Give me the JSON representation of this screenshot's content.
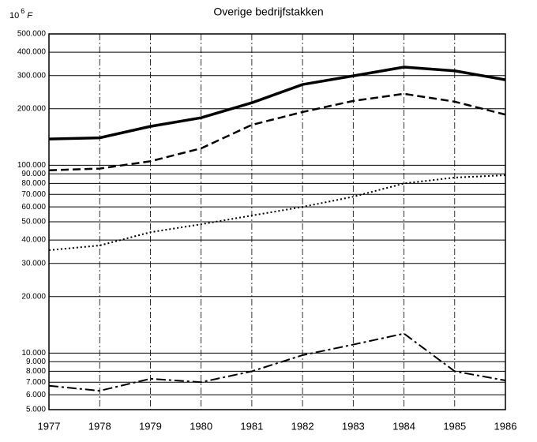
{
  "chart_data": {
    "type": "line",
    "title": "Overige bedrijfstakken",
    "y_label": {
      "base": "10",
      "exponent": "6",
      "unit": "F"
    },
    "x": [
      1977,
      1978,
      1979,
      1980,
      1981,
      1982,
      1983,
      1984,
      1985,
      1986
    ],
    "xlim": [
      1977,
      1986
    ],
    "xticks": [
      1977,
      1978,
      1979,
      1980,
      1981,
      1982,
      1983,
      1984,
      1985,
      1986
    ],
    "ylim": [
      5000,
      500000
    ],
    "log_y": true,
    "grid": true,
    "yticks": [
      {
        "value": 5000,
        "label": "5.000"
      },
      {
        "value": 6000,
        "label": "6.000"
      },
      {
        "value": 7000,
        "label": "7.000"
      },
      {
        "value": 8000,
        "label": "8.000"
      },
      {
        "value": 9000,
        "label": "9.000"
      },
      {
        "value": 10000,
        "label": "10.000"
      },
      {
        "value": 20000,
        "label": "20.000"
      },
      {
        "value": 30000,
        "label": "30.000"
      },
      {
        "value": 40000,
        "label": "40.000"
      },
      {
        "value": 50000,
        "label": "50.000"
      },
      {
        "value": 60000,
        "label": "60.000"
      },
      {
        "value": 70000,
        "label": "70.000"
      },
      {
        "value": 80000,
        "label": "80.000"
      },
      {
        "value": 90000,
        "label": "90.000"
      },
      {
        "value": 100000,
        "label": "100.000"
      },
      {
        "value": 200000,
        "label": "200.000"
      },
      {
        "value": 300000,
        "label": "300.000"
      },
      {
        "value": 400000,
        "label": "400.000"
      },
      {
        "value": 500000,
        "label": "500.000"
      }
    ],
    "series": [
      {
        "color": "#000000",
        "dash": "solid",
        "values": [
          138000,
          140000,
          161000,
          179000,
          215000,
          269000,
          299000,
          333000,
          318000,
          285000
        ]
      },
      {
        "color": "#000000",
        "dash": "dashed",
        "values": [
          94000,
          96000,
          105000,
          123000,
          164000,
          192000,
          220000,
          240000,
          218000,
          186000
        ]
      },
      {
        "color": "#000000",
        "dash": "dotted",
        "values": [
          35300,
          37400,
          44000,
          48500,
          54000,
          60000,
          68000,
          80000,
          86000,
          88500
        ]
      },
      {
        "color": "#000000",
        "dash": "dashdot",
        "values": [
          6700,
          6300,
          7300,
          7000,
          8000,
          9750,
          11100,
          12700,
          8000,
          7150
        ]
      }
    ]
  }
}
